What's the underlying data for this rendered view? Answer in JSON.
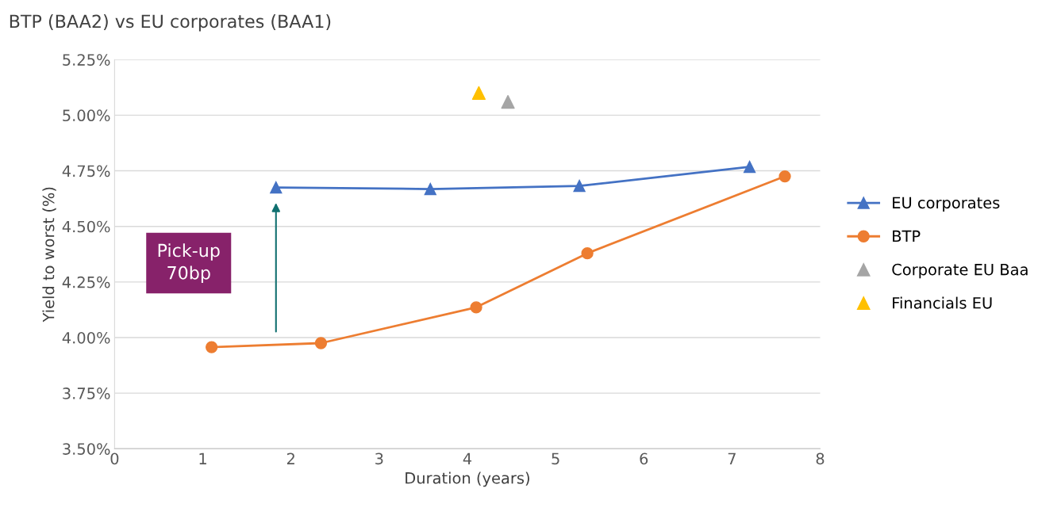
{
  "chart_data": {
    "type": "line",
    "title": "BTP (BAA2) vs EU corporates (BAA1)",
    "xlabel": "Duration (years)",
    "ylabel": "Yield to worst (%)",
    "xlim": [
      0,
      8
    ],
    "xticks": [
      0,
      1,
      2,
      3,
      4,
      5,
      6,
      7,
      8
    ],
    "ylim": [
      3.5,
      5.25
    ],
    "yticks": [
      {
        "value": 3.5,
        "label": "3.50%"
      },
      {
        "value": 3.75,
        "label": "3.75%"
      },
      {
        "value": 4.0,
        "label": "4.00%"
      },
      {
        "value": 4.25,
        "label": "4.25%"
      },
      {
        "value": 4.5,
        "label": "4.50%"
      },
      {
        "value": 4.75,
        "label": "4.75%"
      },
      {
        "value": 5.0,
        "label": "5.00%"
      },
      {
        "value": 5.25,
        "label": "5.25%"
      }
    ],
    "grid": "y",
    "legend": "right",
    "series": [
      {
        "name": "EU corporates",
        "marker": "triangle",
        "color": "#4472c4",
        "x": [
          1.83,
          3.58,
          5.27,
          7.2
        ],
        "values": [
          4.675,
          4.668,
          4.682,
          4.768
        ]
      },
      {
        "name": "BTP",
        "marker": "circle",
        "color": "#ed7d31",
        "x": [
          1.1,
          2.34,
          4.1,
          5.36,
          7.6
        ],
        "values": [
          3.957,
          3.975,
          4.136,
          4.379,
          4.725
        ]
      },
      {
        "name": "Corporate EU Baa",
        "type": "scatter",
        "marker": "triangle",
        "color": "#a5a5a5",
        "x": [
          4.46
        ],
        "values": [
          5.06
        ]
      },
      {
        "name": "Financials EU",
        "type": "scatter",
        "marker": "triangle",
        "color": "#ffc000",
        "x": [
          4.13
        ],
        "values": [
          5.1
        ]
      }
    ],
    "annotations": [
      "Pick-up\n70bp"
    ]
  }
}
